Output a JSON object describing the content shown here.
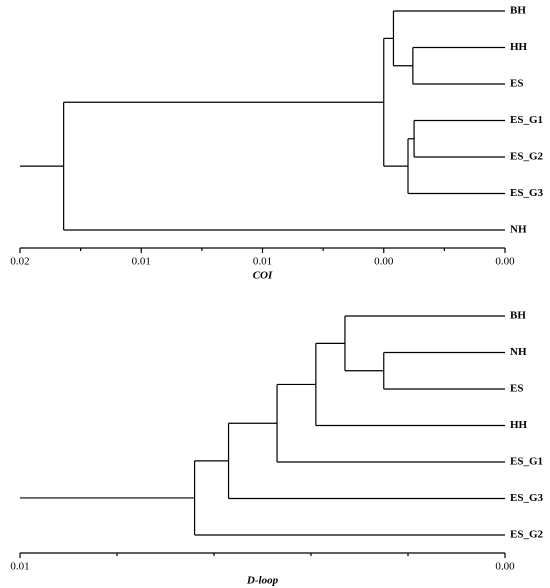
{
  "chart_data": [
    {
      "type": "dendrogram",
      "xlabel": "COI",
      "leaves": [
        "BH",
        "HH",
        "ES",
        "ES_G1",
        "ES_G2",
        "ES_G3",
        "NH"
      ],
      "merges": [
        [
          1,
          2,
          0.0038
        ],
        [
          0,
          7,
          0.0046
        ],
        [
          3,
          4,
          0.00375
        ],
        [
          9,
          5,
          0.004
        ],
        [
          8,
          10,
          0.005
        ],
        [
          11,
          6,
          0.0182
        ]
      ],
      "xlim": [
        0.02,
        0
      ],
      "xticks": [
        0.02,
        {
          "value": 0.015,
          "label": "0.01"
        },
        0.01,
        {
          "value": 0.005,
          "label": "0.00"
        },
        {
          "value": 0,
          "label": "0.00"
        }
      ],
      "minor_xticks": [
        0.0175,
        0.0125,
        0.0075,
        0.0025
      ],
      "color": "#000000"
    },
    {
      "type": "dendrogram",
      "xlabel": "D-loop",
      "leaves": [
        "BH",
        "NH",
        "ES",
        "HH",
        "ES_G1",
        "ES_G3",
        "ES_G2"
      ],
      "merges": [
        [
          1,
          2,
          0.0025
        ],
        [
          0,
          7,
          0.0033
        ],
        [
          8,
          3,
          0.0039
        ],
        [
          9,
          4,
          0.0047
        ],
        [
          10,
          5,
          0.0057
        ],
        [
          11,
          6,
          0.0064
        ]
      ],
      "xlim": [
        0.01,
        0
      ],
      "xticks": [
        0.01,
        {
          "value": 0,
          "label": "0.00"
        }
      ],
      "minor_xticks": [
        0.008,
        0.006,
        0.004,
        0.002
      ],
      "color": "#000000"
    }
  ]
}
